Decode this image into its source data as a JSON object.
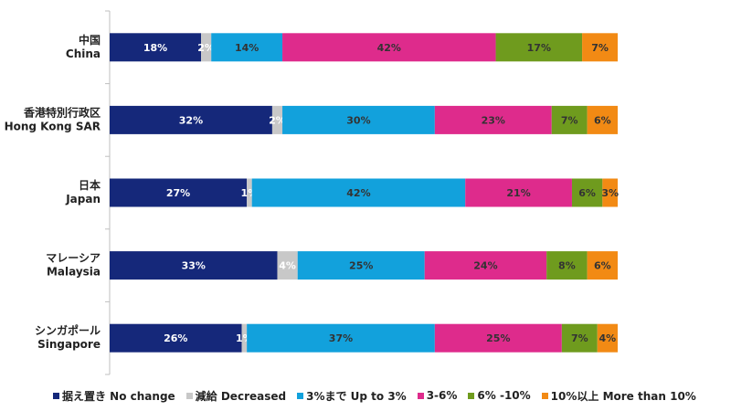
{
  "chart_data": {
    "type": "bar",
    "orientation": "horizontal",
    "stacked": true,
    "percent": true,
    "categories": [
      {
        "line1": "中国",
        "line2": "China"
      },
      {
        "line1": "香港特別行政区",
        "line2": "Hong Kong SAR"
      },
      {
        "line1": "日本",
        "line2": "Japan"
      },
      {
        "line1": "マレーシア",
        "line2": "Malaysia"
      },
      {
        "line1": "シンガポール",
        "line2": "Singapore"
      }
    ],
    "series": [
      {
        "name": "据え置き No change",
        "color": "#15287a",
        "label_color": "#ffffff",
        "values": [
          18,
          32,
          27,
          33,
          26
        ],
        "labels": [
          "18%",
          "32%",
          "27%",
          "33%",
          "26%"
        ]
      },
      {
        "name": "減給 Decreased",
        "color": "#c8c8c8",
        "label_color": "#ffffff",
        "values": [
          2,
          2,
          1,
          4,
          1
        ],
        "labels": [
          "2%",
          "2%",
          "1%",
          "4%",
          "1%"
        ]
      },
      {
        "name": "3%まで Up to 3%",
        "color": "#12a1dc",
        "label_color": "#333333",
        "values": [
          14,
          30,
          42,
          25,
          37
        ],
        "labels": [
          "14%",
          "30%",
          "42%",
          "25%",
          "37%"
        ]
      },
      {
        "name": "3-6%",
        "color": "#de2b8c",
        "label_color": "#333333",
        "values": [
          42,
          23,
          21,
          24,
          25
        ],
        "labels": [
          "42%",
          "23%",
          "21%",
          "24%",
          "25%"
        ]
      },
      {
        "name": "6% -10%",
        "color": "#6f9b1e",
        "label_color": "#333333",
        "values": [
          17,
          7,
          6,
          8,
          7
        ],
        "labels": [
          "17%",
          "7%",
          "6%",
          "8%",
          "7%"
        ]
      },
      {
        "name": "10%以上 More than 10%",
        "color": "#f28a14",
        "label_color": "#333333",
        "values": [
          7,
          6,
          3,
          6,
          4
        ],
        "labels": [
          "7%",
          "6%",
          "3%",
          "6%",
          "4%"
        ]
      }
    ],
    "xlim": [
      0,
      100
    ],
    "legend_position": "bottom",
    "grid": false
  }
}
